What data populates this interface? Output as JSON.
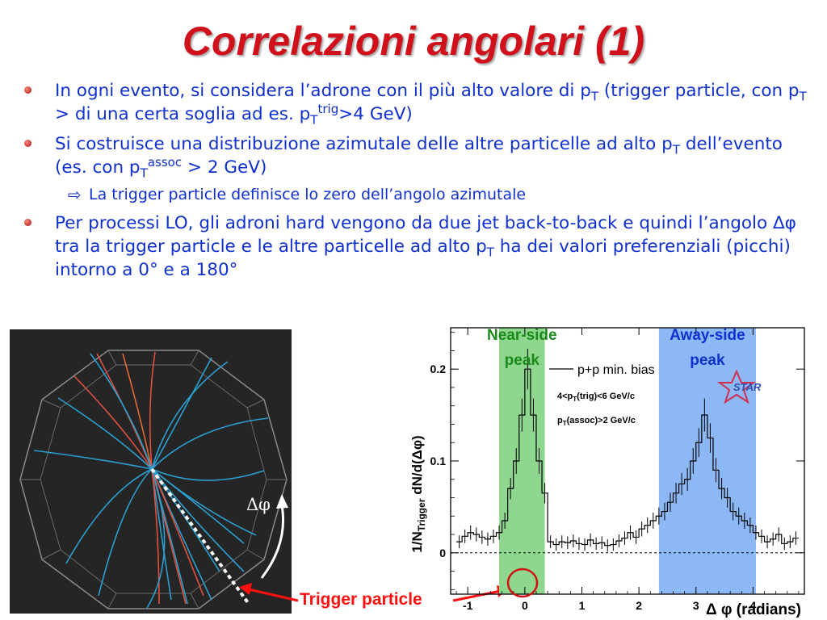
{
  "title": "Correlazioni angolari (1)",
  "bullets": [
    {
      "pre": "In ogni evento, si considera l’adrone con il più alto valore di p",
      "s1": "T",
      "mid1": " (trigger particle, con p",
      "s2": "T",
      "mid2": " > di una certa soglia ad es. p",
      "s3": "T",
      "sup3": "trig",
      "post": ">4 GeV)"
    },
    {
      "pre": "Si costruisce una distribuzione azimutale delle altre particelle ad alto p",
      "s1": "T",
      "mid1": " dell’evento (es. con p",
      "s2": "T",
      "sup2": "assoc",
      "post": " > 2 GeV)",
      "sub": "La trigger particle definisce lo zero dell’angolo azimutale"
    },
    {
      "pre": "Per processi LO, gli adroni hard vengono da due jet back-to-back e quindi l’angolo ",
      "delta": "Δφ",
      "mid": " tra la trigger particle e le altre particelle ad alto p",
      "s1": "T",
      "post": " ha dei valori preferenziali (picchi) intorno a 0° e a 180°"
    }
  ],
  "event_display": {
    "angle_label": "Δφ",
    "trigger_label": "Trigger particle"
  },
  "chart_data": {
    "type": "line",
    "title": "",
    "ylabel_pre": "1/N",
    "ylabel_sub": "Trigger",
    "ylabel_post": " dN/d(Δφ)",
    "xlabel": "Δ φ (radians)",
    "xlim": [
      -1.3,
      4.9
    ],
    "ylim": [
      -0.045,
      0.245
    ],
    "xticks": [
      -1,
      0,
      1,
      2,
      3,
      4
    ],
    "yticks": [
      0,
      0.1,
      0.2
    ],
    "ytick_labels": [
      "0",
      "0.1",
      "0.2"
    ],
    "legend": {
      "series": "p+p min. bias",
      "cut1_pre": "4<p",
      "cut1_sub": "T",
      "cut1_post": "(trig)<6 GeV/c",
      "cut2_pre": "p",
      "cut2_sub": "T",
      "cut2_post": "(assoc)>2 GeV/c"
    },
    "logo": "STAR",
    "bands": [
      {
        "label1": "Near-side",
        "label2": "peak",
        "x0": -0.45,
        "x1": 0.35,
        "color": "#8fd68f"
      },
      {
        "label1": "Away-side",
        "label2": "peak",
        "x0": 2.35,
        "x1": 4.05,
        "color": "#8cb8f5"
      }
    ],
    "series": [
      {
        "x": [
          -1.15,
          -1.05,
          -0.95,
          -0.85,
          -0.75,
          -0.65,
          -0.55,
          -0.45,
          -0.35,
          -0.25,
          -0.15,
          -0.05,
          0.05,
          0.15,
          0.25,
          0.35,
          0.45,
          0.55,
          0.65,
          0.75,
          0.85,
          0.95,
          1.05,
          1.15,
          1.25,
          1.35,
          1.45,
          1.55,
          1.65,
          1.75,
          1.85,
          1.95,
          2.05,
          2.15,
          2.25,
          2.35,
          2.45,
          2.55,
          2.65,
          2.75,
          2.85,
          2.95,
          3.05,
          3.15,
          3.25,
          3.35,
          3.45,
          3.55,
          3.65,
          3.75,
          3.85,
          3.95,
          4.05,
          4.15,
          4.25,
          4.35,
          4.45,
          4.55,
          4.65,
          4.75
        ],
        "y": [
          0.012,
          0.018,
          0.022,
          0.02,
          0.017,
          0.015,
          0.018,
          0.022,
          0.035,
          0.07,
          0.1,
          0.15,
          0.2,
          0.15,
          0.1,
          0.065,
          0.012,
          0.009,
          0.012,
          0.011,
          0.013,
          0.01,
          0.009,
          0.014,
          0.01,
          0.011,
          0.008,
          0.009,
          0.013,
          0.016,
          0.022,
          0.017,
          0.026,
          0.03,
          0.035,
          0.04,
          0.045,
          0.055,
          0.065,
          0.075,
          0.08,
          0.1,
          0.12,
          0.15,
          0.125,
          0.09,
          0.07,
          0.06,
          0.045,
          0.04,
          0.035,
          0.03,
          0.022,
          0.018,
          0.012,
          0.015,
          0.02,
          0.01,
          0.012,
          0.016
        ]
      }
    ]
  }
}
